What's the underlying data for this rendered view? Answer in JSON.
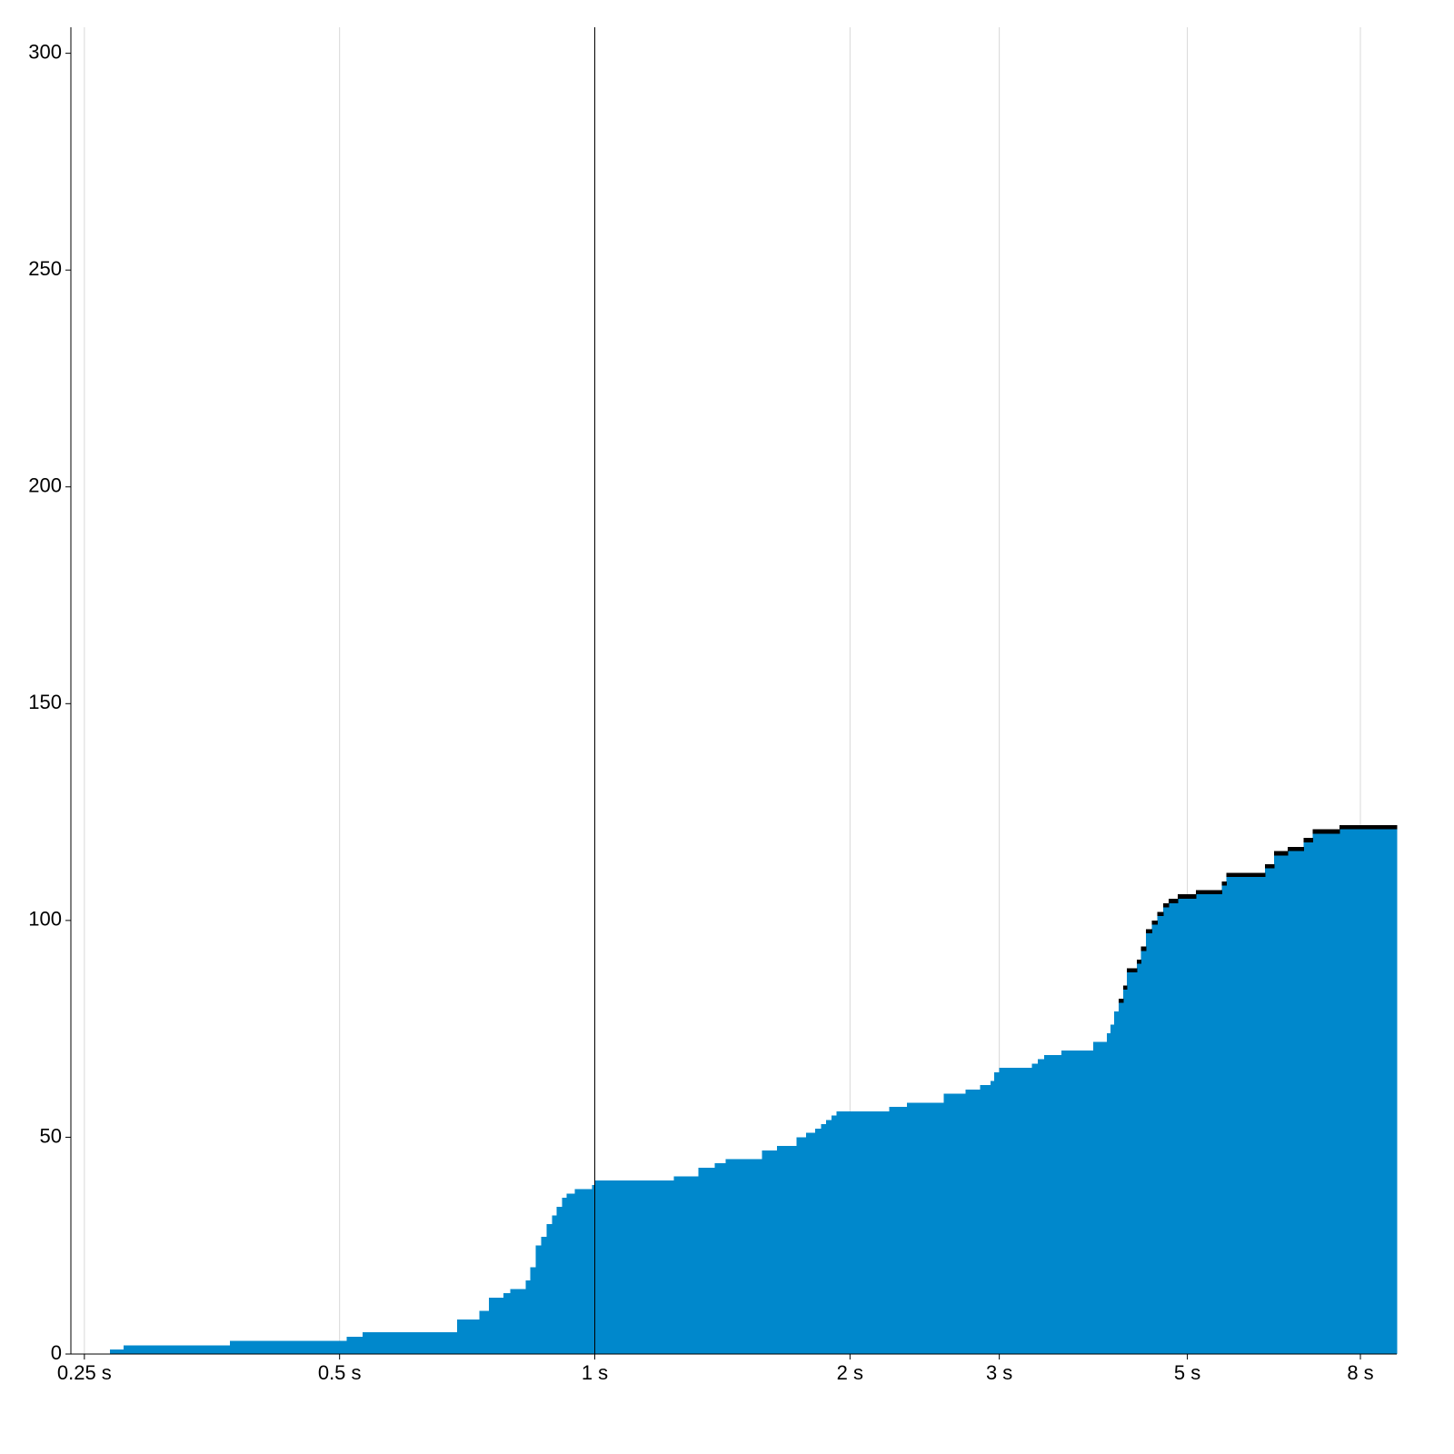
{
  "chart_data": {
    "type": "area",
    "step": true,
    "stacked": true,
    "x_log": true,
    "grid": true,
    "xref": 1,
    "x": [
      0.268,
      0.278,
      0.371,
      0.51,
      0.532,
      0.688,
      0.731,
      0.75,
      0.78,
      0.795,
      0.829,
      0.839,
      0.852,
      0.864,
      0.877,
      0.89,
      0.902,
      0.915,
      0.926,
      0.947,
      0.993,
      1.0,
      1.239,
      1.325,
      1.385,
      1.427,
      1.575,
      1.641,
      1.729,
      1.776,
      1.82,
      1.848,
      1.875,
      1.903,
      1.927,
      2.224,
      2.335,
      2.579,
      2.736,
      2.846,
      2.93,
      2.96,
      3.0,
      3.276,
      3.33,
      3.39,
      3.553,
      3.874,
      4.02,
      4.06,
      4.1,
      4.15,
      4.2,
      4.24,
      4.36,
      4.41,
      4.47,
      4.54,
      4.61,
      4.68,
      4.75,
      4.87,
      5.12,
      5.49,
      5.56,
      6.17,
      6.33,
      6.57,
      6.86,
      7.03,
      7.56
    ],
    "series": [
      {
        "color": "#0088cc",
        "values": [
          1,
          2,
          3,
          4,
          5,
          8,
          10,
          13,
          14,
          15,
          17,
          20,
          25,
          27,
          30,
          32,
          34,
          36,
          37,
          38,
          39,
          40,
          41,
          43,
          44,
          45,
          47,
          48,
          50,
          51,
          52,
          53,
          54,
          55,
          56,
          57,
          58,
          60,
          61,
          62,
          63,
          65,
          66,
          67,
          68,
          69,
          70,
          72,
          74,
          76,
          79,
          81,
          84,
          88,
          90,
          93,
          97,
          99,
          101,
          103,
          104,
          105,
          106,
          108,
          110,
          112,
          115,
          116,
          118,
          120,
          121
        ]
      },
      {
        "color": "#000000",
        "values": [
          0,
          0,
          0,
          0,
          0,
          0,
          0,
          0,
          0,
          0,
          0,
          0,
          0,
          0,
          0,
          0,
          0,
          0,
          0,
          0,
          0,
          0,
          0,
          0,
          0,
          0,
          0,
          0,
          0,
          0,
          0,
          0,
          0,
          0,
          0,
          0,
          0,
          0,
          0,
          0,
          0,
          0,
          0,
          0,
          0,
          0,
          0,
          0,
          0,
          0,
          0,
          1,
          1,
          1,
          1,
          1,
          1,
          1,
          1,
          1,
          1,
          1,
          1,
          1,
          1,
          1,
          1,
          1,
          1,
          1,
          1
        ]
      }
    ],
    "xlim": [
      0.241,
      8.83
    ],
    "ylim": [
      0,
      306
    ],
    "xticks": [
      {
        "value": 0.25,
        "label": "0.25 s"
      },
      {
        "value": 0.5,
        "label": "0.5 s"
      },
      {
        "value": 1,
        "label": "1 s"
      },
      {
        "value": 2,
        "label": "2 s"
      },
      {
        "value": 3,
        "label": "3 s"
      },
      {
        "value": 5,
        "label": "5 s"
      },
      {
        "value": 8,
        "label": "8 s"
      }
    ],
    "yticks": [
      0,
      50,
      100,
      150,
      200,
      250,
      300
    ]
  }
}
